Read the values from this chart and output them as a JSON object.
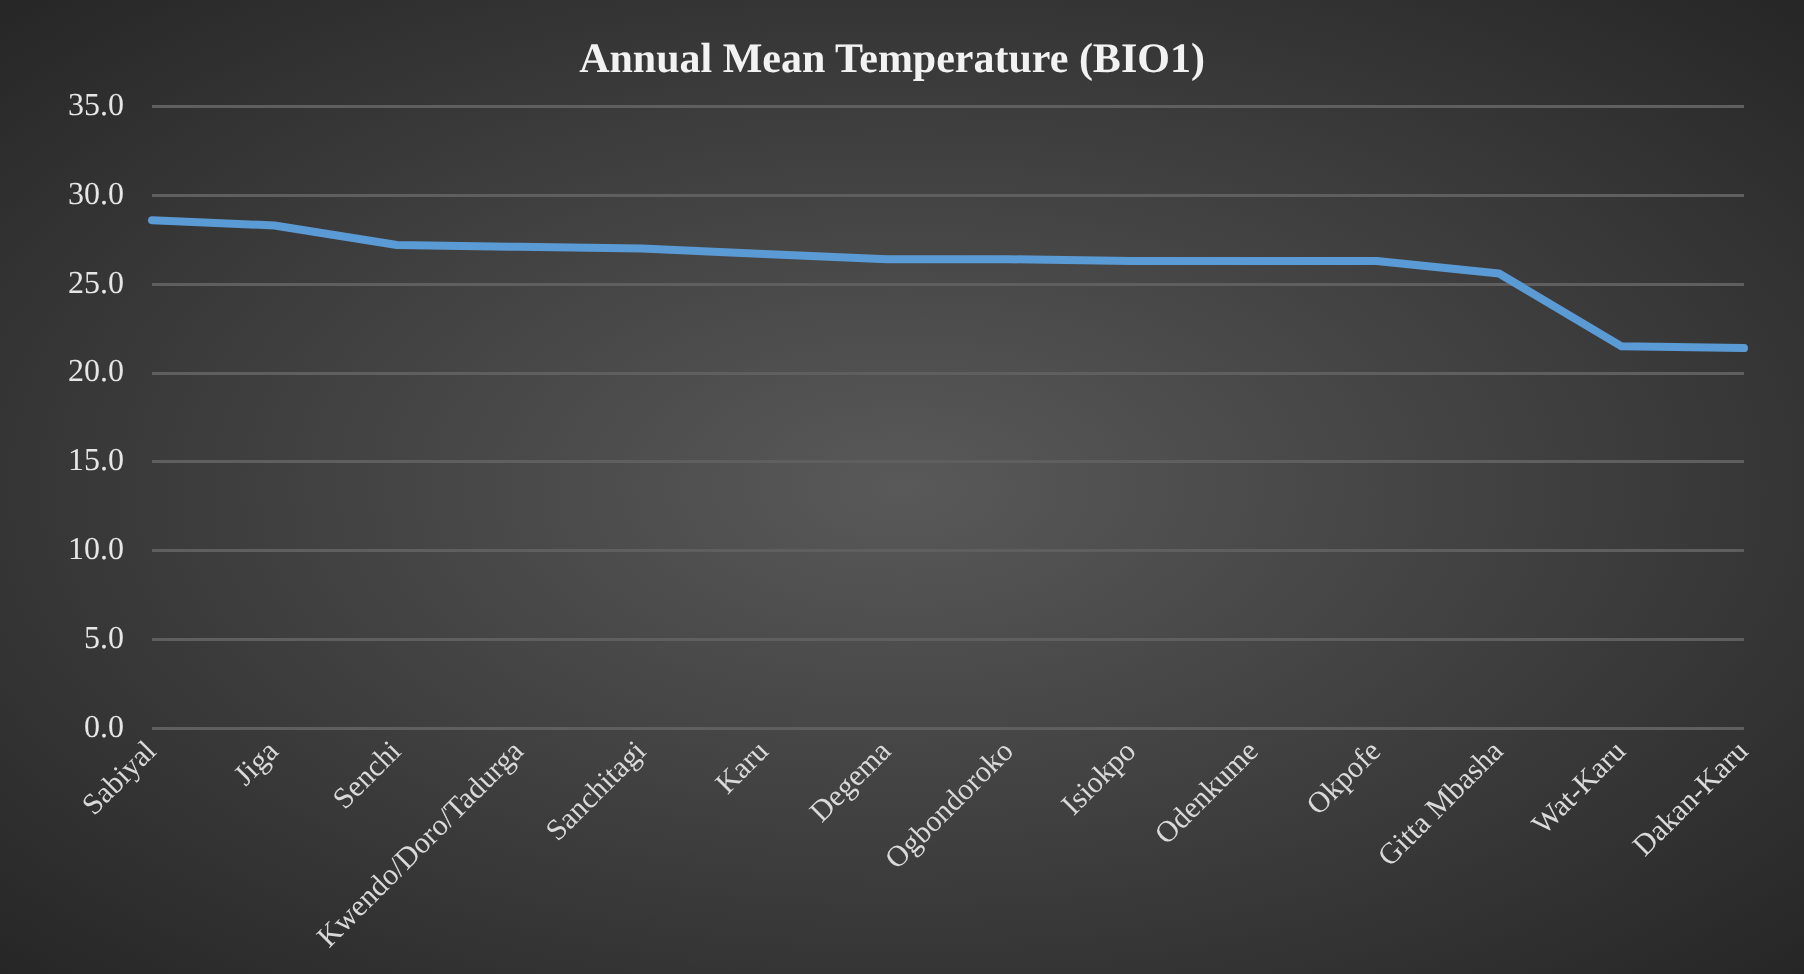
{
  "chart_data": {
    "type": "line",
    "title": "Annual Mean Temperature (BIO1)",
    "categories": [
      "Sabiyal",
      "Jiga",
      "Senchi",
      "Kwendo/Doro/Tadurga",
      "Sanchitagi",
      "Karu",
      "Degema",
      "Ogbondoroko",
      "Isiokpo",
      "Odenkume",
      "Okpofe",
      "Gitta Mbasha",
      "Wat-Karu",
      "Dakan-Karu"
    ],
    "series": [
      {
        "color": "#5b9bd5",
        "values": [
          28.6,
          28.3,
          27.2,
          27.1,
          27.0,
          26.7,
          26.4,
          26.4,
          26.3,
          26.3,
          26.3,
          25.6,
          21.5,
          21.4
        ]
      }
    ],
    "ylim": [
      0,
      35
    ],
    "yticks": [
      {
        "value": 0,
        "label": "0.0"
      },
      {
        "value": 5,
        "label": "5.0"
      },
      {
        "value": 10,
        "label": "10.0"
      },
      {
        "value": 15,
        "label": "15.0"
      },
      {
        "value": 20,
        "label": "20.0"
      },
      {
        "value": 25,
        "label": "25.0"
      },
      {
        "value": 30,
        "label": "30.0"
      },
      {
        "value": 35,
        "label": "35.0"
      }
    ],
    "grid": "y",
    "legend": false,
    "marker": "none",
    "line_style": "solid"
  }
}
